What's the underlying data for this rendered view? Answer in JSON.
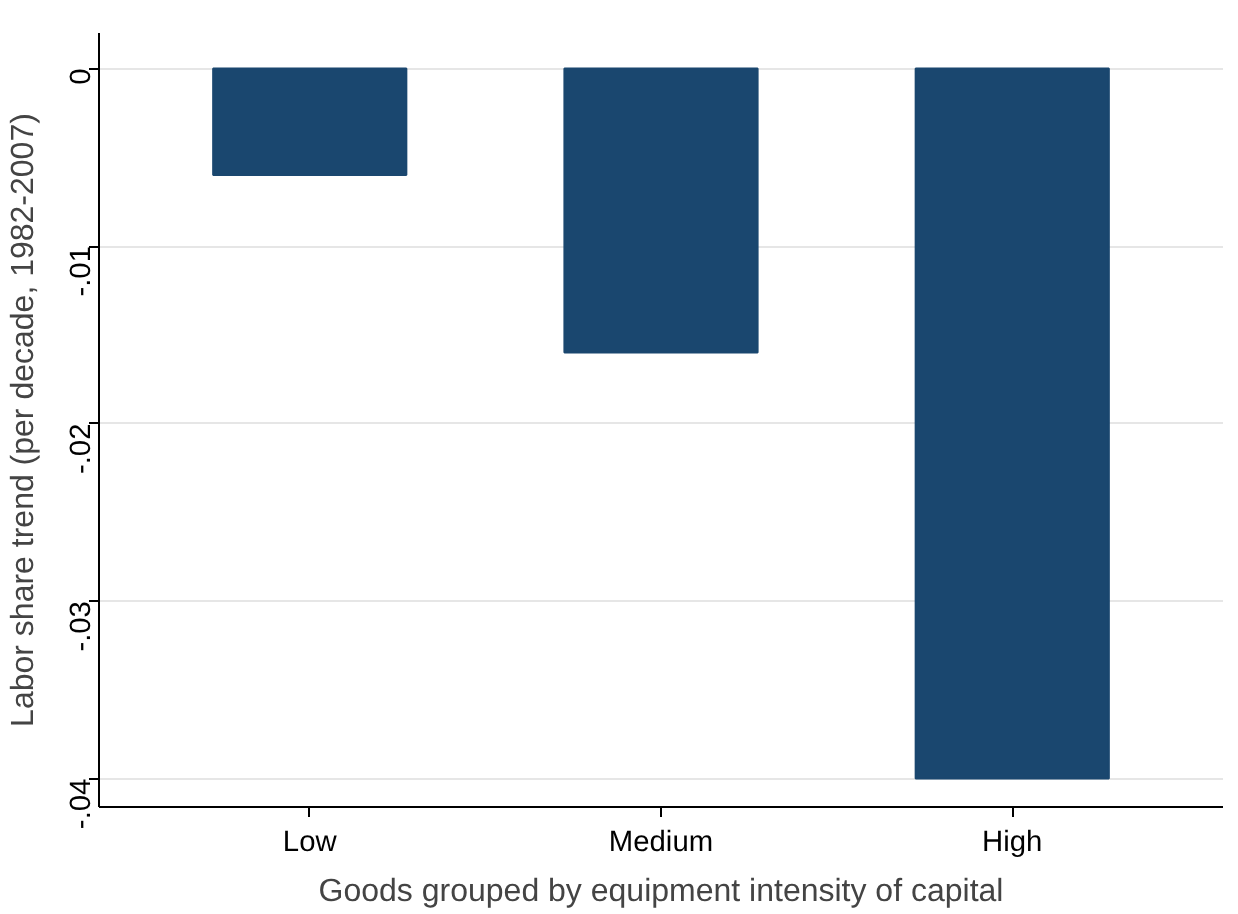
{
  "chart_data": {
    "type": "bar",
    "xlabel": "Goods grouped by equipment intensity of capital",
    "ylabel": "Labor share trend (per decade, 1982-2007)",
    "categories": [
      "Low",
      "Medium",
      "High"
    ],
    "values": [
      -0.006,
      -0.016,
      -0.04
    ],
    "color": "#1a476f",
    "ylim": [
      -0.0416,
      0.002
    ],
    "yticks": [
      {
        "value": 0,
        "label": "0"
      },
      {
        "value": -0.01,
        "label": "-.01"
      },
      {
        "value": -0.02,
        "label": "-.02"
      },
      {
        "value": -0.03,
        "label": "-.03"
      },
      {
        "value": -0.04,
        "label": "-.04"
      }
    ],
    "grid": "y"
  }
}
